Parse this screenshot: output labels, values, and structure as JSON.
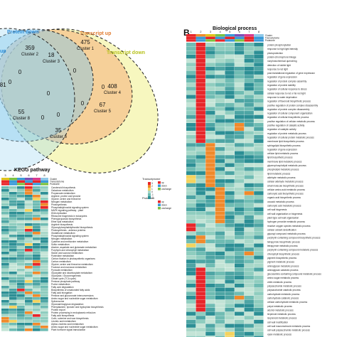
{
  "venn": {
    "sets": [
      {
        "label": "up",
        "color": "#2b8cd8"
      },
      {
        "label": "Protein down",
        "color": "#2b8cd8"
      },
      {
        "label": "Transcript up",
        "color": "#e07a2e"
      },
      {
        "label": "Transcript down",
        "color": "#b8c21e"
      }
    ],
    "regions": [
      {
        "count": "359",
        "cluster": "Cluster 2"
      },
      {
        "count": "18",
        "cluster": "Cluster 3"
      },
      {
        "count": "475",
        "cluster": "Cluster 1"
      },
      {
        "count": "0",
        "cluster": ""
      },
      {
        "count": "0",
        "cluster": ""
      },
      {
        "count": "0",
        "cluster": ""
      },
      {
        "count": "0",
        "cluster": ""
      },
      {
        "count": "0",
        "cluster": ""
      },
      {
        "count": "408",
        "cluster": "Cluster 4"
      },
      {
        "count": "481",
        "cluster": ""
      },
      {
        "count": "55",
        "cluster": "Cluster 8"
      },
      {
        "count": "0",
        "cluster": ""
      },
      {
        "count": "0",
        "cluster": ""
      },
      {
        "count": "67",
        "cluster": "Cluster 5"
      },
      {
        "count": "35",
        "cluster": "Cluster 6"
      },
      {
        "count": "0",
        "cluster": ""
      }
    ]
  },
  "panel_b": {
    "letter": "B"
  },
  "kegg": {
    "title": "KEGG pathway",
    "columns": [
      "3",
      "4",
      "5",
      "6",
      "7",
      "8"
    ],
    "bar_labels": [
      "Cluster",
      "Transcriptome",
      "Proteome"
    ],
    "legend": {
      "transcriptome_title": "Transcriptome",
      "transcriptome_items": [
        "up",
        "down",
        "unchange"
      ],
      "proteome_title": "Proteome",
      "proteome_items": [
        "up",
        "down",
        "unchange"
      ],
      "scale": [
        "3",
        "2",
        "1",
        "0",
        "-1",
        "-2"
      ]
    },
    "rows": [
      "Carotenoid biosynthesis",
      "Galactose metabolism",
      "Propanoate metabolism",
      "Arginine, proline and tyrosine",
      "Glycine, serine and threonine",
      "Nitrogen metabolism",
      "Photosynthesis",
      "Phosphatidylinositol signaling system",
      "MAPK signaling pathway - plant",
      "DNA replication",
      "Ribosome biogenesis in eukaryotes",
      "Phenylpropanoid biosynthesis",
      "Ether lipid metabolism",
      "Arginine biosynthesis",
      "Glycosylphosphatidylinositol biosynthesis",
      "Photosynthesis - antenna proteins",
      "Glutathione metabolism",
      "Phosphatidylinositol signaling system",
      "Nitrogen metabolism",
      "Cysteine and methionine metabolism",
      "Sulfur metabolism",
      "Alanine, aspartate and glutamate metabolism",
      "Porphyrin and chlorophyll metabolism",
      "Starch and sucrose metabolism",
      "Pyrimidine metabolism",
      "Carbon fixation in photosynthetic organisms",
      "Carbon metabolism",
      "Glycine, serine and threonine metabolism",
      "Fructose and mannose metabolism",
      "Pyruvate metabolism",
      "Glyoxylate and dicarboxylate metabolism",
      "Glycolysis / Gluconeogenesis",
      "Citrate cycle (TCA cycle)",
      "Pentose phosphate pathway",
      "Purine metabolism",
      "Fatty acid degradation",
      "Biosynthesis of unsaturated fatty acids",
      "Fatty acid elongation",
      "Pentose and glucuronate interconversions",
      "Amino sugar and nucleotide sugar metabolism",
      "Spliceosome",
      "Glycosaminoglycan degradation",
      "Phenylalanine, tyrosine and tryptophan biosynthesis",
      "Protein export",
      "Protein processing in endoplasmic reticulum",
      "Fatty acid biosynthesis",
      "Cutin, suberine and wax biosynthesis",
      "Linoleic acid metabolism",
      "Alpha-Linolenic acid metabolism",
      "Amino sugar and nucleotide sugar metabolism",
      "Plant hormone signal transduction"
    ]
  },
  "bio": {
    "title": "Biological process",
    "columns": [
      "1",
      "2",
      "3",
      "4",
      "5",
      "6",
      "7",
      "8"
    ],
    "bar_labels": [
      "Cluster",
      "Transcriptome",
      "Proteome"
    ],
    "rows": [
      "protein phosphorylation",
      "response to high light intensity",
      "photoprotection",
      "protein-chromophore linkage",
      "nonphotochemical quenching",
      "detection of visible light",
      "response to red light",
      "post-translational regulation of gene expression",
      "regulation of gene expression",
      "regulation of protein complex assembly",
      "regulation of protein stability",
      "regulation of cellular response to stress",
      "cellular response to red or far red light",
      "response to water deprivation",
      "regulation of flavonoid biosynthetic process",
      "positive regulation of protein complex disassembly",
      "regulation of protein complex disassembly",
      "regulation of cellular component organization",
      "regulation of cellular biosynthetic process",
      "positive regulation of cellular metabolic process",
      "positive regulation of catalytic activity",
      "regulation of catalytic activity",
      "regulation of protein metabolic process",
      "regulation of cellular protein metabolic process",
      "membrane lipid biosynthetic process",
      "sphingolipid biosynthetic process",
      "regulation of gene expression",
      "cellular lipid metabolic process",
      "lipid biosynthetic process",
      "membrane lipid metabolic process",
      "glycerophospholipid metabolic process",
      "phospholipid metabolic process",
      "lipid metabolic process",
      "aldehyde metabolic process",
      "cellular aldehyde metabolic process",
      "small molecule biosynthetic process",
      "cellular amino acid metabolic process",
      "carboxylic acid biosynthetic process",
      "organic acid biosynthetic process",
      "oxoacid metabolic process",
      "carboxylic acid metabolic process",
      "cell wall biogenesis",
      "cell wall organization or biogenesis",
      "plant-type cell wall organization",
      "hydrogen peroxide metabolic process",
      "reactive oxygen species metabolic process",
      "cellular oxidant detoxification",
      "glycosyl compound metabolic process",
      "porphyrin-containing compound biosynthetic process",
      "tetrapyrrole biosynthetic process",
      "tetrapyrrole metabolic process",
      "porphyrin-containing compound metabolic process",
      "chlorophyll biosynthetic process",
      "pigment biosynthetic process",
      "pigment metabolic process",
      "aminoglycan metabolic process",
      "aminoglycan catabolic process",
      "glucosamine-containing compound metabolic process",
      "amino sugar metabolic process",
      "chitin metabolic process",
      "polysaccharide metabolic process",
      "polysaccharide catabolic process",
      "carbohydrate metabolic process",
      "carbohydrate catabolic process",
      "cellular carbohydrate metabolic process",
      "polyol metabolic process",
      "alcohol metabolic process",
      "terpenoid metabolic process",
      "isoprenoid metabolic process",
      "cell wall modification",
      "cell wall macromolecule metabolic process",
      "cell wall polysaccharide metabolic process",
      "xylan metabolic process",
      "polysaccharide biosynthetic process"
    ]
  },
  "colors": {
    "low": "#2c8f95",
    "mid": "#a9d8c9",
    "high1": "#f4d35e",
    "high2": "#f08a2c",
    "high3": "#e8262a",
    "cluster_colors": [
      "#e8262a",
      "#f08a2c",
      "#e0c31a",
      "#7cc242",
      "#3a9ad8",
      "#7d4fb5",
      "#d83a8e",
      "#8fc8e8"
    ],
    "up": "#e8262a",
    "down": "#3a9ad8",
    "unchange": "#7cc242"
  }
}
